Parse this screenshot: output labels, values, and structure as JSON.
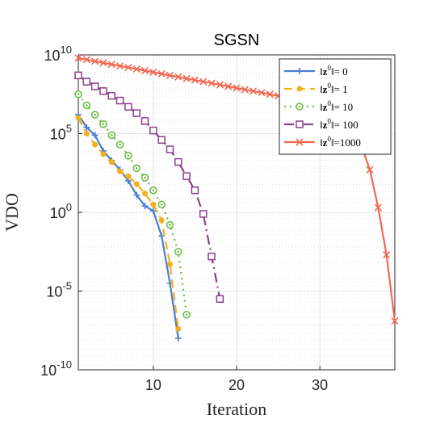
{
  "chart_data": {
    "type": "line",
    "title": "SGSN",
    "xlabel": "Iteration",
    "ylabel": "VDO",
    "xlim": [
      1,
      39
    ],
    "ylim_log10": [
      -10,
      10
    ],
    "yscale": "log",
    "grid": true,
    "minor_grid": true,
    "legend_position": "top-right",
    "x_ticks": [
      10,
      20,
      30
    ],
    "x_tick_labels": [
      "10",
      "20",
      "30"
    ],
    "y_ticks_log10": [
      -10,
      -5,
      0,
      5,
      10
    ],
    "y_tick_labels": [
      {
        "base": "10",
        "exp": "-10"
      },
      {
        "base": "10",
        "exp": "-5"
      },
      {
        "base": "10",
        "exp": "0"
      },
      {
        "base": "10",
        "exp": "5"
      },
      {
        "base": "10",
        "exp": "10"
      }
    ],
    "series": [
      {
        "name": "||z0|| = 0",
        "legend_norm": "z",
        "legend_sup": "0",
        "legend_suffix": "= 0",
        "color": "#4a7fd1",
        "dash": "",
        "marker": "plus",
        "x": [
          1,
          2,
          3,
          4,
          5,
          6,
          7,
          8,
          9,
          10,
          11,
          12,
          13
        ],
        "y_log10": [
          6.2,
          5.4,
          4.9,
          3.9,
          3.3,
          2.7,
          2.0,
          1.1,
          0.4,
          0.1,
          -1.5,
          -4.5,
          -8.0
        ]
      },
      {
        "name": "||z0|| = 1",
        "legend_norm": "z",
        "legend_sup": "0",
        "legend_suffix": "= 1",
        "color": "#f2b01e",
        "dash": "10 6",
        "marker": "dot",
        "x": [
          1,
          2,
          3,
          4,
          5,
          6,
          7,
          8,
          9,
          10,
          11,
          12,
          13
        ],
        "y_log10": [
          6.0,
          5.0,
          4.3,
          3.7,
          3.2,
          2.6,
          2.3,
          1.8,
          1.2,
          0.5,
          -0.5,
          -3.3,
          -7.4
        ]
      },
      {
        "name": "||z0|| = 10",
        "legend_norm": "z",
        "legend_sup": "0",
        "legend_suffix": "= 10",
        "color": "#6cbd45",
        "dash": "2 5",
        "marker": "circle-dot",
        "x": [
          1,
          2,
          3,
          4,
          5,
          6,
          7,
          8,
          9,
          10,
          11,
          12,
          13,
          14
        ],
        "y_log10": [
          7.5,
          6.8,
          6.2,
          5.6,
          4.9,
          4.3,
          3.6,
          2.8,
          2.2,
          1.4,
          0.5,
          -0.8,
          -2.5,
          -6.5
        ]
      },
      {
        "name": "||z0|| = 100",
        "legend_norm": "z",
        "legend_sup": "0",
        "legend_suffix": "= 100",
        "color": "#8a3f8f",
        "dash": "12 5 2 5",
        "marker": "square",
        "x": [
          1,
          2,
          3,
          4,
          5,
          6,
          7,
          8,
          9,
          10,
          11,
          12,
          13,
          14,
          15,
          16,
          17,
          18
        ],
        "y_log10": [
          8.7,
          8.3,
          8.0,
          7.7,
          7.4,
          7.1,
          6.7,
          6.3,
          5.8,
          5.2,
          4.6,
          4.0,
          3.2,
          2.3,
          1.4,
          -0.1,
          -2.8,
          -5.5
        ]
      },
      {
        "name": "||z0|| = 1000",
        "legend_norm": "z",
        "legend_sup": "0",
        "legend_suffix": "=1000",
        "color": "#f06a52",
        "dash": "",
        "marker": "cross",
        "x": [
          1,
          2,
          3,
          4,
          5,
          6,
          7,
          8,
          9,
          10,
          11,
          12,
          13,
          14,
          15,
          16,
          17,
          18,
          19,
          20,
          21,
          22,
          23,
          24,
          25,
          26,
          27,
          28,
          29,
          30,
          31,
          32,
          33,
          34,
          35,
          36,
          37,
          38,
          39
        ],
        "y_log10": [
          9.8,
          9.7,
          9.6,
          9.5,
          9.4,
          9.3,
          9.2,
          9.1,
          9.0,
          8.9,
          8.8,
          8.7,
          8.6,
          8.5,
          8.4,
          8.3,
          8.2,
          8.1,
          8.0,
          7.9,
          7.8,
          7.7,
          7.6,
          7.5,
          7.4,
          7.3,
          7.2,
          7.1,
          7.0,
          6.8,
          6.6,
          6.3,
          5.9,
          5.2,
          4.2,
          2.7,
          0.3,
          -2.7,
          -6.9
        ]
      }
    ]
  }
}
